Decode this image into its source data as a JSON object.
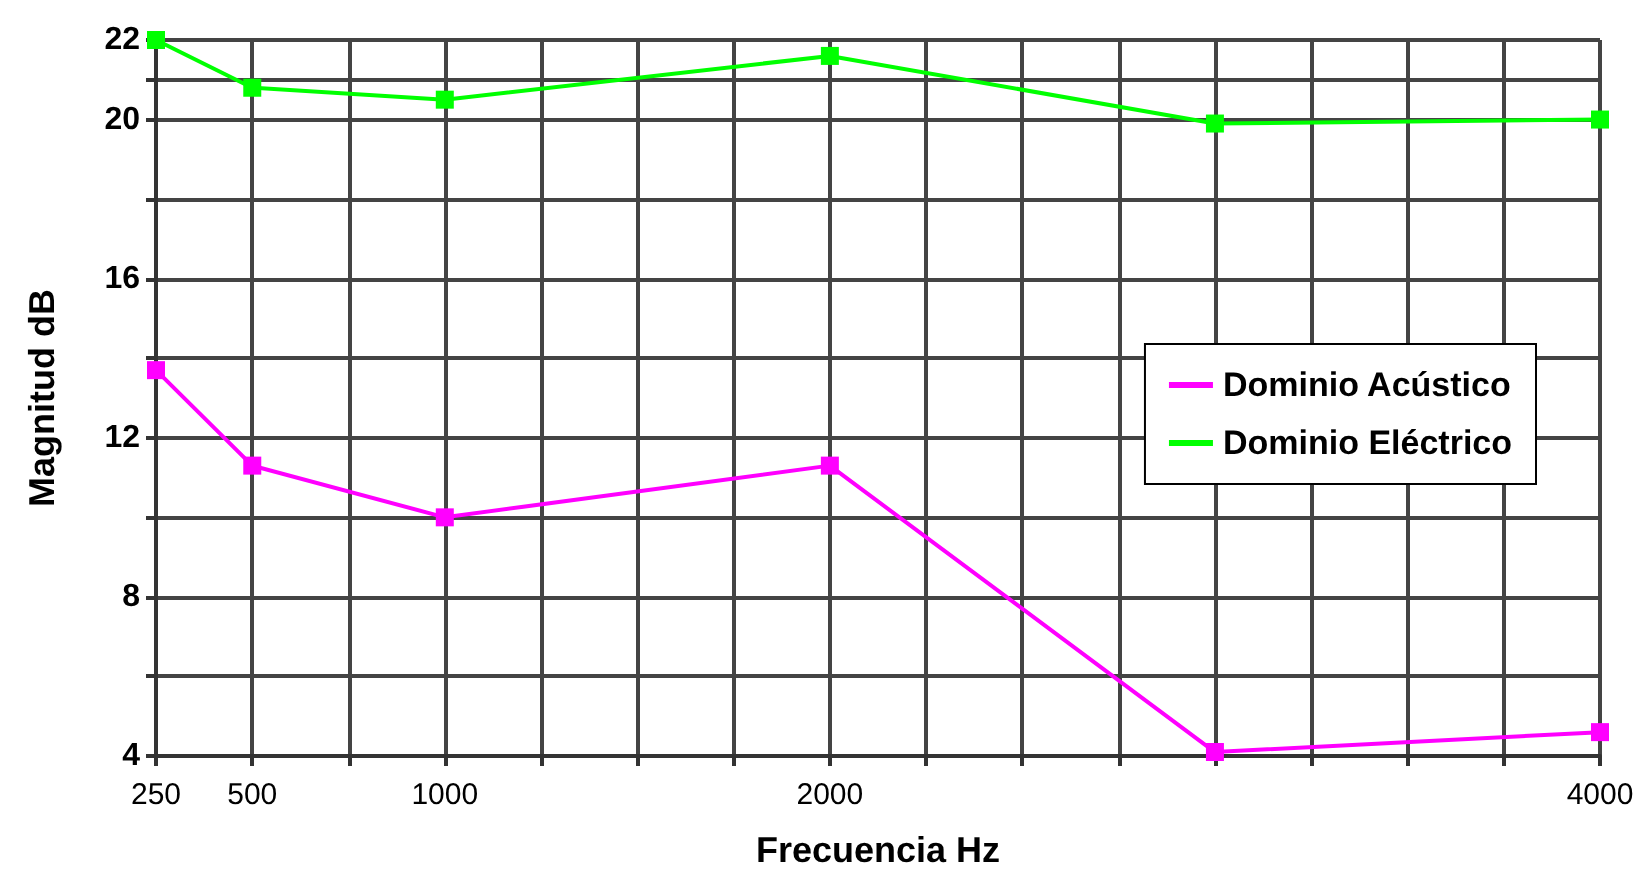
{
  "chart_data": {
    "type": "line",
    "xlabel": "Frecuencia Hz",
    "ylabel": "Magnitud dB",
    "x": [
      250,
      500,
      1000,
      2000,
      3000,
      4000
    ],
    "series": [
      {
        "name": "Dominio Acústico",
        "color": "#ff00ff",
        "values": [
          13.7,
          11.3,
          10.0,
          11.3,
          4.1,
          4.6
        ]
      },
      {
        "name": "Dominio Eléctrico",
        "color": "#00ff00",
        "values": [
          22,
          20.8,
          20.5,
          21.6,
          19.9,
          20.0
        ]
      }
    ],
    "xlim": [
      250,
      4000
    ],
    "xticks": [
      250,
      500,
      {
        "value": 750,
        "label": null
      },
      1000,
      {
        "value": 1250,
        "label": null
      },
      {
        "value": 1500,
        "label": null
      },
      {
        "value": 1750,
        "label": null
      },
      2000,
      {
        "value": 2250,
        "label": null
      },
      {
        "value": 2500,
        "label": null
      },
      {
        "value": 2750,
        "label": null
      },
      {
        "value": 3000,
        "label": null
      },
      {
        "value": 3250,
        "label": null
      },
      {
        "value": 3500,
        "label": null
      },
      {
        "value": 3750,
        "label": null
      },
      4000
    ],
    "ylim": [
      4,
      22
    ],
    "yticks": [
      4,
      {
        "value": 6,
        "label": null
      },
      8,
      {
        "value": 10,
        "label": null
      },
      12,
      {
        "value": 14,
        "label": null
      },
      16,
      {
        "value": 18,
        "label": null
      },
      20,
      {
        "value": 21,
        "label": null
      },
      22
    ],
    "grid": true,
    "legend": "right",
    "marker": "square",
    "line_style": "solid"
  }
}
